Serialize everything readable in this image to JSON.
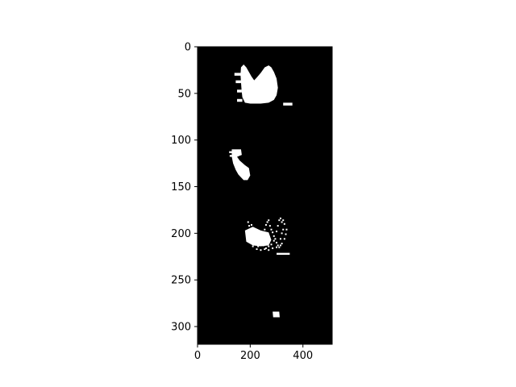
{
  "chart_data": {
    "type": "heatmap",
    "title": "",
    "xlabel": "",
    "ylabel": "",
    "xlim": [
      0,
      511
    ],
    "ylim": [
      319,
      0
    ],
    "x_ticks": [
      0,
      200,
      400
    ],
    "y_ticks": [
      0,
      50,
      100,
      150,
      200,
      250,
      300
    ],
    "colormap": {
      "background": "#000000",
      "foreground": "#ffffff"
    },
    "grid": false,
    "legend": "none",
    "regions": [
      {
        "name": "heart-blob",
        "outline": [
          [
            165,
            22
          ],
          [
            175,
            19
          ],
          [
            185,
            22
          ],
          [
            195,
            27
          ],
          [
            205,
            32
          ],
          [
            215,
            36
          ],
          [
            225,
            33
          ],
          [
            240,
            28
          ],
          [
            255,
            22
          ],
          [
            270,
            20
          ],
          [
            280,
            22
          ],
          [
            290,
            27
          ],
          [
            300,
            34
          ],
          [
            305,
            44
          ],
          [
            300,
            52
          ],
          [
            290,
            57
          ],
          [
            270,
            60
          ],
          [
            240,
            61
          ],
          [
            200,
            61
          ],
          [
            180,
            60
          ],
          [
            170,
            54
          ],
          [
            167,
            46
          ],
          [
            165,
            38
          ],
          [
            163,
            30
          ]
        ],
        "fragments": [
          [
            [
              140,
              28
            ],
            [
              165,
              28
            ],
            [
              165,
              31
            ],
            [
              140,
              31
            ]
          ],
          [
            [
              145,
              36
            ],
            [
              165,
              36
            ],
            [
              165,
              39
            ],
            [
              145,
              39
            ]
          ],
          [
            [
              150,
              46
            ],
            [
              168,
              46
            ],
            [
              168,
              49
            ],
            [
              150,
              49
            ]
          ],
          [
            [
              150,
              56
            ],
            [
              170,
              56
            ],
            [
              170,
              59
            ],
            [
              150,
              59
            ]
          ],
          [
            [
              325,
              60
            ],
            [
              360,
              60
            ],
            [
              360,
              63
            ],
            [
              325,
              63
            ]
          ]
        ]
      },
      {
        "name": "small-blob",
        "outline": [
          [
            130,
            110
          ],
          [
            165,
            110
          ],
          [
            168,
            116
          ],
          [
            150,
            118
          ],
          [
            160,
            122
          ],
          [
            180,
            127
          ],
          [
            195,
            130
          ],
          [
            200,
            138
          ],
          [
            190,
            143
          ],
          [
            175,
            143
          ],
          [
            165,
            140
          ],
          [
            155,
            137
          ],
          [
            145,
            132
          ],
          [
            135,
            125
          ],
          [
            130,
            118
          ]
        ],
        "fragments": [
          [
            [
              120,
              112
            ],
            [
              135,
              112
            ],
            [
              135,
              114
            ],
            [
              120,
              114
            ]
          ],
          [
            [
              122,
              116
            ],
            [
              133,
              116
            ],
            [
              133,
              118
            ],
            [
              122,
              118
            ]
          ]
        ]
      },
      {
        "name": "speckle-cluster",
        "outline": [
          [
            180,
            197
          ],
          [
            210,
            193
          ],
          [
            240,
            197
          ],
          [
            270,
            199
          ],
          [
            280,
            207
          ],
          [
            270,
            213
          ],
          [
            240,
            214
          ],
          [
            210,
            213
          ],
          [
            185,
            209
          ]
        ],
        "fragments": [
          [
            [
              300,
              221
            ],
            [
              350,
              221
            ],
            [
              350,
              223
            ],
            [
              300,
              223
            ]
          ]
        ],
        "speckles": [
          [
            192,
            188
          ],
          [
            196,
            192
          ],
          [
            200,
            196
          ],
          [
            205,
            199
          ],
          [
            210,
            203
          ],
          [
            220,
            208
          ],
          [
            225,
            212
          ],
          [
            230,
            214
          ],
          [
            235,
            210
          ],
          [
            240,
            205
          ],
          [
            250,
            202
          ],
          [
            255,
            196
          ],
          [
            260,
            191
          ],
          [
            265,
            188
          ],
          [
            270,
            186
          ],
          [
            275,
            192
          ],
          [
            280,
            196
          ],
          [
            285,
            199
          ],
          [
            290,
            203
          ],
          [
            295,
            206
          ],
          [
            300,
            210
          ],
          [
            305,
            213
          ],
          [
            310,
            215
          ],
          [
            315,
            206
          ],
          [
            320,
            200
          ],
          [
            325,
            196
          ],
          [
            330,
            190
          ],
          [
            320,
            188
          ],
          [
            310,
            186
          ],
          [
            305,
            192
          ],
          [
            300,
            198
          ],
          [
            290,
            208
          ],
          [
            280,
            212
          ],
          [
            270,
            214
          ],
          [
            260,
            216
          ],
          [
            250,
            213
          ],
          [
            245,
            209
          ],
          [
            240,
            205
          ],
          [
            230,
            200
          ],
          [
            215,
            195
          ],
          [
            205,
            191
          ],
          [
            200,
            210
          ],
          [
            210,
            214
          ],
          [
            225,
            217
          ],
          [
            240,
            218
          ],
          [
            255,
            217
          ],
          [
            270,
            218
          ],
          [
            285,
            216
          ],
          [
            300,
            215
          ],
          [
            315,
            213
          ],
          [
            320,
            211
          ],
          [
            330,
            206
          ],
          [
            335,
            201
          ],
          [
            338,
            196
          ],
          [
            325,
            186
          ],
          [
            315,
            184
          ]
        ]
      },
      {
        "name": "small-rectangle",
        "outline": [
          [
            285,
            284
          ],
          [
            310,
            284
          ],
          [
            312,
            290
          ],
          [
            287,
            290
          ]
        ],
        "fragments": []
      }
    ]
  }
}
